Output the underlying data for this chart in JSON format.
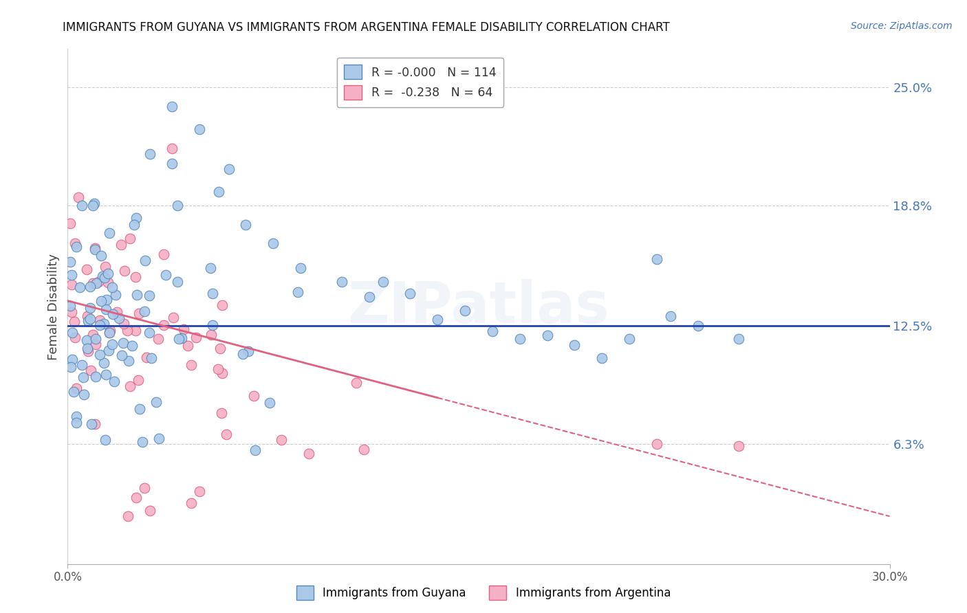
{
  "title": "IMMIGRANTS FROM GUYANA VS IMMIGRANTS FROM ARGENTINA FEMALE DISABILITY CORRELATION CHART",
  "source": "Source: ZipAtlas.com",
  "ylabel_label": "Female Disability",
  "xlim": [
    0.0,
    0.3
  ],
  "ylim": [
    0.0,
    0.27
  ],
  "ytick_right_labels": [
    "25.0%",
    "18.8%",
    "12.5%",
    "6.3%"
  ],
  "ytick_right_values": [
    0.25,
    0.188,
    0.125,
    0.063
  ],
  "guyana_color": "#aac8e8",
  "argentina_color": "#f5b0c5",
  "guyana_edge": "#5588bb",
  "argentina_edge": "#e06080",
  "trend_guyana_color": "#2244aa",
  "trend_argentina_color": "#e06080",
  "R_guyana": -0.0,
  "N_guyana": 114,
  "R_argentina": -0.238,
  "N_argentina": 64,
  "watermark": "ZIPatlas",
  "background_color": "#ffffff",
  "grid_color": "#cccccc",
  "right_label_color": "#4477bb",
  "title_color": "#111111",
  "guyana_trend_y": 0.125,
  "argentina_trend_start_y": 0.138,
  "argentina_trend_end_y": 0.025
}
